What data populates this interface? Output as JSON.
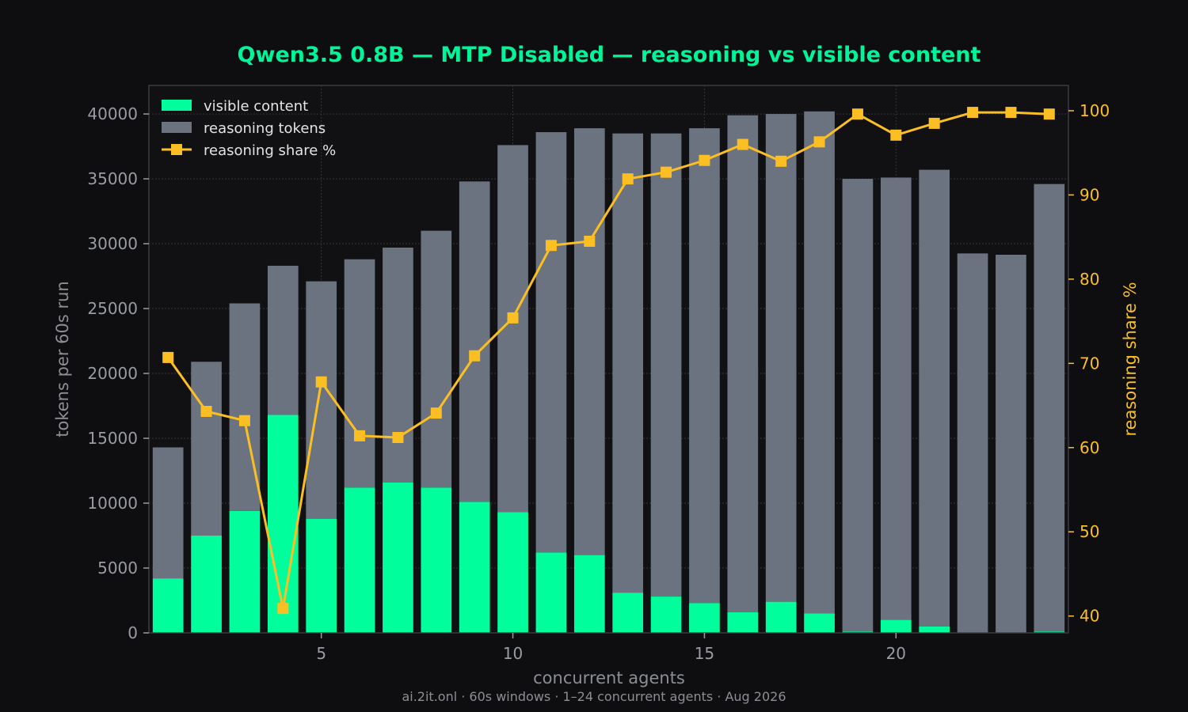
{
  "chart_data": {
    "type": "bar",
    "title": "Qwen3.5 0.8B — MTP Disabled — reasoning vs visible content",
    "xlabel": "concurrent agents",
    "ylabel": "tokens per 60s run",
    "y2label": "reasoning share %",
    "footer": "ai.2it.onl · 60s windows · 1–24 concurrent agents · Aug 2026",
    "x": [
      1,
      2,
      3,
      4,
      5,
      6,
      7,
      8,
      9,
      10,
      11,
      12,
      13,
      14,
      15,
      16,
      17,
      18,
      19,
      20,
      21,
      22,
      23,
      24
    ],
    "xticks": [
      5,
      10,
      15,
      20
    ],
    "xlim": [
      0.5,
      24.5
    ],
    "ylim": [
      0,
      42200
    ],
    "yticks": [
      0,
      5000,
      10000,
      15000,
      20000,
      25000,
      30000,
      35000,
      40000
    ],
    "y2lim": [
      38,
      103
    ],
    "y2ticks": [
      40,
      50,
      60,
      70,
      80,
      90,
      100
    ],
    "stacked": true,
    "grid": true,
    "legend_position": "top-left",
    "series": [
      {
        "name": "visible content",
        "kind": "bar",
        "axis": "left",
        "color": "#00ff9c",
        "values": [
          4200,
          7500,
          9400,
          16800,
          8800,
          11200,
          11600,
          11200,
          10100,
          9300,
          6200,
          6000,
          3100,
          2800,
          2300,
          1600,
          2400,
          1500,
          100,
          1000,
          500,
          50,
          50,
          100
        ]
      },
      {
        "name": "reasoning tokens",
        "kind": "bar",
        "axis": "left",
        "color": "#6b7280",
        "values": [
          10100,
          13400,
          16000,
          11500,
          18300,
          17600,
          18100,
          19800,
          24700,
          28300,
          32400,
          32900,
          35400,
          35700,
          36600,
          38300,
          37600,
          38700,
          34900,
          34100,
          35200,
          29200,
          29100,
          34500
        ]
      },
      {
        "name": "reasoning share %",
        "kind": "line",
        "axis": "right",
        "color": "#fbbf24",
        "values": [
          70.7,
          64.3,
          63.2,
          40.9,
          67.8,
          61.4,
          61.2,
          64.1,
          70.9,
          75.4,
          84.0,
          84.5,
          91.9,
          92.7,
          94.1,
          96.0,
          94.0,
          96.3,
          99.6,
          97.1,
          98.5,
          99.8,
          99.8,
          99.6
        ]
      }
    ]
  },
  "colors": {
    "background": "#0e0e10",
    "plot_background": "#111114",
    "title": "#00f59b",
    "axis_text": "#9a9ca3",
    "right_axis_text": "#fbbf24",
    "grid": "#33343a",
    "frame": "#3a3b40"
  }
}
